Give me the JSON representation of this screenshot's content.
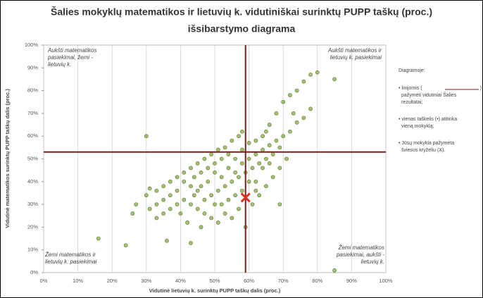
{
  "chart_data": {
    "type": "scatter",
    "title": [
      "Šalies mokyklų matematikos ir lietuvių k. vidutiniškai surinktų PUPP taškų (proc.)",
      "išsibarstymo diagrama"
    ],
    "x_label": "Vidutinė lietuvių k. surinktų PUPP taškų dalis (proc.)",
    "y_label": "Vidutinė matematikos surinktų PUPP taškų dalis (proc.)",
    "xlim": [
      0,
      100
    ],
    "ylim": [
      0,
      100
    ],
    "xticks": [
      {
        "value": 0,
        "label": "0%"
      },
      {
        "value": 10,
        "label": "10%"
      },
      {
        "value": 20,
        "label": "20%"
      },
      {
        "value": 30,
        "label": "30%"
      },
      {
        "value": 40,
        "label": "40%"
      },
      {
        "value": 50,
        "label": "50%"
      },
      {
        "value": 60,
        "label": "60%"
      },
      {
        "value": 70,
        "label": "70%"
      },
      {
        "value": 80,
        "label": "80%"
      },
      {
        "value": 90,
        "label": "90%"
      },
      {
        "value": 100,
        "label": "100%"
      }
    ],
    "yticks": [
      {
        "value": 0,
        "label": "0%"
      },
      {
        "value": 10,
        "label": "10%"
      },
      {
        "value": 20,
        "label": "20%"
      },
      {
        "value": 30,
        "label": "30%"
      },
      {
        "value": 40,
        "label": "40%"
      },
      {
        "value": 50,
        "label": "50%"
      },
      {
        "value": 60,
        "label": "60%"
      },
      {
        "value": 70,
        "label": "70%"
      },
      {
        "value": 80,
        "label": "80%"
      },
      {
        "value": 90,
        "label": "90%"
      },
      {
        "value": 100,
        "label": "100%"
      }
    ],
    "grid": true,
    "series": [
      {
        "color": "#8aa84a",
        "x": [
          30,
          16,
          24,
          26,
          27,
          36,
          43,
          69,
          85,
          85,
          80,
          78,
          76,
          74,
          72,
          70,
          73,
          68,
          66,
          65,
          64,
          62,
          60,
          58,
          57,
          55,
          53,
          51,
          49,
          47,
          45,
          43,
          41,
          39,
          37,
          35,
          33,
          31,
          30,
          31,
          33,
          35,
          37,
          39,
          41,
          43,
          45,
          47,
          49,
          51,
          53,
          55,
          57,
          59,
          61,
          63,
          65,
          67,
          69,
          71,
          69,
          67,
          65,
          63,
          61,
          59,
          57,
          55,
          53,
          51,
          49,
          47,
          45,
          43,
          41,
          39,
          37,
          35,
          33,
          44,
          46,
          48,
          50,
          52,
          54,
          56,
          58,
          60,
          62,
          64,
          66,
          68,
          70,
          72,
          74,
          76,
          78,
          46,
          50,
          54,
          58,
          62,
          56,
          52,
          48,
          44,
          40,
          42,
          60,
          64,
          58,
          54,
          50,
          46,
          62,
          66,
          56,
          52
        ],
        "values": [
          60,
          15,
          12,
          26,
          30,
          14,
          13,
          30,
          1,
          85,
          88,
          87,
          84,
          80,
          78,
          75,
          70,
          70,
          65,
          62,
          60,
          58,
          57,
          62,
          60,
          58,
          55,
          54,
          52,
          50,
          48,
          46,
          44,
          42,
          40,
          38,
          36,
          37,
          34,
          28,
          30,
          32,
          28,
          30,
          32,
          30,
          28,
          26,
          24,
          22,
          26,
          24,
          28,
          20,
          30,
          34,
          38,
          42,
          46,
          50,
          55,
          52,
          50,
          48,
          46,
          44,
          42,
          40,
          38,
          36,
          34,
          32,
          36,
          38,
          40,
          36,
          34,
          26,
          24,
          42,
          44,
          46,
          48,
          50,
          52,
          50,
          48,
          50,
          52,
          54,
          56,
          58,
          60,
          62,
          66,
          68,
          72,
          20,
          30,
          32,
          36,
          40,
          44,
          42,
          40,
          34,
          26,
          22,
          40,
          46,
          54,
          46,
          44,
          38,
          36,
          48,
          34,
          30
        ]
      }
    ],
    "mean_x": 59,
    "mean_y": 53,
    "mean_color": "#7b1e1e",
    "school": {
      "x": 59,
      "y": 33,
      "color": "#e0301e"
    },
    "quadrant_labels": {
      "top_left": [
        "Aukšti matematikos",
        "pasiekimai, žemi -",
        "lietuvių k."
      ],
      "top_right": [
        "Aukšti matematikos ir",
        "lietuvių k. pasiekimai"
      ],
      "bottom_left": [
        "Žemi matematikos ir",
        "lietuvių k. pasiekimai"
      ],
      "bottom_right": [
        "Žemi matematikos",
        "pasiekimai, aukšti -",
        "lietuvių k."
      ]
    },
    "notes": {
      "heading": "Diagramoje:",
      "items": [
        [
          "• linijomis (",
          ")",
          "pažymėti vidutiniai Šalies",
          "rezultatai;"
        ],
        [
          "• vienas taškelis (•) atitinka",
          "vieną mokyklą;"
        ],
        [
          "• Jūsų mokykla pažymėta",
          "šviesos kryželiu (X)."
        ]
      ]
    }
  }
}
